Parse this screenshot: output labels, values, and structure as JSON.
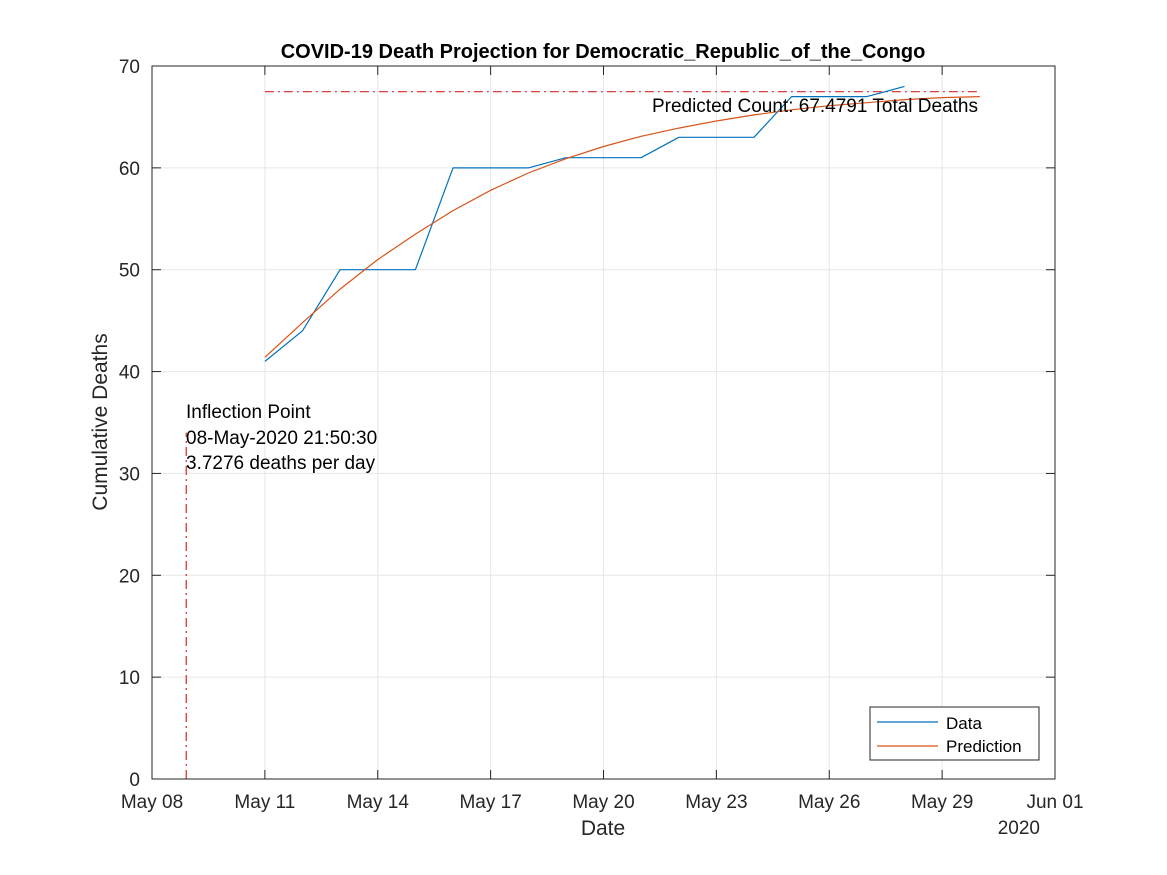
{
  "chart_data": {
    "type": "line",
    "title": "COVID-19 Death Projection for Democratic_Republic_of_the_Congo",
    "xlabel": "Date",
    "ylabel": "Cumulative Deaths",
    "x_axis_type": "date",
    "x_year_label": "2020",
    "xlim": [
      "2020-05-08",
      "2020-06-01"
    ],
    "ylim": [
      0,
      70
    ],
    "grid": true,
    "legend_position": "bottom-right",
    "x_ticks": [
      {
        "date": "2020-05-08",
        "label": "May 08"
      },
      {
        "date": "2020-05-11",
        "label": "May 11"
      },
      {
        "date": "2020-05-14",
        "label": "May 14"
      },
      {
        "date": "2020-05-17",
        "label": "May 17"
      },
      {
        "date": "2020-05-20",
        "label": "May 20"
      },
      {
        "date": "2020-05-23",
        "label": "May 23"
      },
      {
        "date": "2020-05-26",
        "label": "May 26"
      },
      {
        "date": "2020-05-29",
        "label": "May 29"
      },
      {
        "date": "2020-06-01",
        "label": "Jun 01"
      }
    ],
    "y_ticks": [
      0,
      10,
      20,
      30,
      40,
      50,
      60,
      70
    ],
    "series": [
      {
        "name": "Data",
        "color": "#0072BD",
        "x": [
          "2020-05-11",
          "2020-05-12",
          "2020-05-13",
          "2020-05-14",
          "2020-05-15",
          "2020-05-16",
          "2020-05-17",
          "2020-05-18",
          "2020-05-19",
          "2020-05-20",
          "2020-05-21",
          "2020-05-22",
          "2020-05-23",
          "2020-05-24",
          "2020-05-25",
          "2020-05-26",
          "2020-05-27",
          "2020-05-28"
        ],
        "y": [
          41,
          44,
          50,
          50,
          50,
          60,
          60,
          60,
          61,
          61,
          61,
          63,
          63,
          63,
          67,
          67,
          67,
          68
        ]
      },
      {
        "name": "Prediction",
        "color": "#D95319",
        "x": [
          "2020-05-11",
          "2020-05-12",
          "2020-05-13",
          "2020-05-14",
          "2020-05-15",
          "2020-05-16",
          "2020-05-17",
          "2020-05-18",
          "2020-05-19",
          "2020-05-20",
          "2020-05-21",
          "2020-05-22",
          "2020-05-23",
          "2020-05-24",
          "2020-05-25",
          "2020-05-26",
          "2020-05-27",
          "2020-05-28",
          "2020-05-29",
          "2020-05-30"
        ],
        "y": [
          41.4,
          44.8,
          48.1,
          51.0,
          53.5,
          55.8,
          57.8,
          59.5,
          60.9,
          62.1,
          63.1,
          63.9,
          64.6,
          65.2,
          65.7,
          66.1,
          66.4,
          66.7,
          66.9,
          67.0
        ]
      }
    ],
    "reference_lines": [
      {
        "orientation": "horizontal",
        "y": 67.4791,
        "x_start": "2020-05-11",
        "x_end": "2020-05-30",
        "color": "#D62728",
        "style": "dash-dot"
      },
      {
        "orientation": "vertical",
        "x": "2020-05-08T21:50:30",
        "y_start": 0,
        "y_end": 34,
        "color": "#D62728",
        "style": "dash-dot"
      }
    ],
    "annotations": {
      "predicted_count": "Predicted Count: 67.4791 Total Deaths",
      "inflection": [
        "Inflection Point",
        "08-May-2020 21:50:30",
        "3.7276 deaths per day"
      ]
    }
  }
}
